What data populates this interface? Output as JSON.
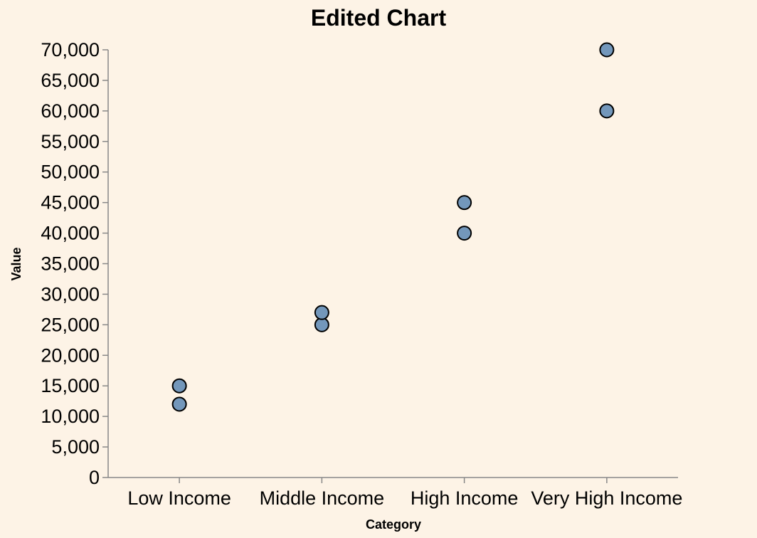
{
  "chart_data": {
    "type": "scatter",
    "title": "Edited Chart",
    "xlabel": "Category",
    "ylabel": "Value",
    "categories": [
      "Low Income",
      "Middle Income",
      "High Income",
      "Very High Income"
    ],
    "points": [
      {
        "category": "Low Income",
        "value": 12000
      },
      {
        "category": "Low Income",
        "value": 15000
      },
      {
        "category": "Middle Income",
        "value": 25000
      },
      {
        "category": "Middle Income",
        "value": 27000
      },
      {
        "category": "High Income",
        "value": 40000
      },
      {
        "category": "High Income",
        "value": 45000
      },
      {
        "category": "Very High Income",
        "value": 60000
      },
      {
        "category": "Very High Income",
        "value": 70000
      }
    ],
    "ylim": [
      0,
      70000
    ],
    "yticks": [
      0,
      5000,
      10000,
      15000,
      20000,
      25000,
      30000,
      35000,
      40000,
      45000,
      50000,
      55000,
      60000,
      65000,
      70000
    ],
    "ytick_labels": [
      "0",
      "5,000",
      "10,000",
      "15,000",
      "20,000",
      "25,000",
      "30,000",
      "35,000",
      "40,000",
      "45,000",
      "50,000",
      "55,000",
      "60,000",
      "65,000",
      "70,000"
    ],
    "grid": false,
    "colors": {
      "background": "#fdf3e6",
      "point_fill": "#7397bb",
      "point_stroke": "#000000",
      "axis": "#888888"
    }
  }
}
